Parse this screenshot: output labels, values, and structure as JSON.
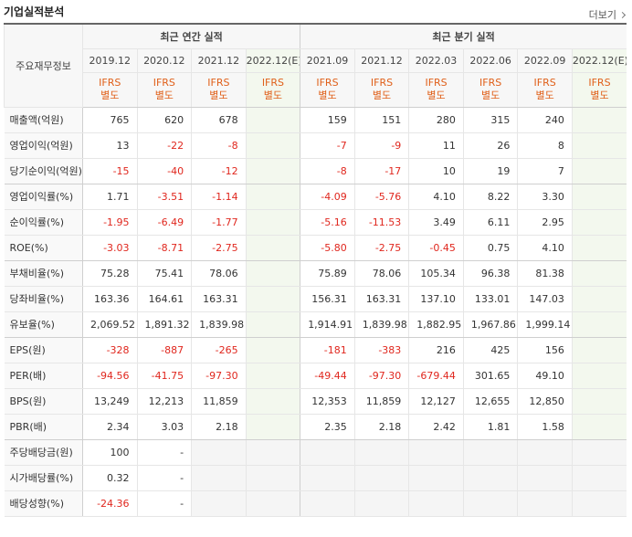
{
  "header": {
    "title": "기업실적분석",
    "more": "더보기"
  },
  "table": {
    "corner": "주요재무정보",
    "groups": [
      "최근 연간 실적",
      "최근 분기 실적"
    ],
    "periods": [
      "2019.12",
      "2020.12",
      "2021.12",
      "2022.12(E)",
      "2021.09",
      "2021.12",
      "2022.03",
      "2022.06",
      "2022.09",
      "2022.12(E)"
    ],
    "standards": [
      [
        "IFRS",
        "별도"
      ],
      [
        "IFRS",
        "별도"
      ],
      [
        "IFRS",
        "별도"
      ],
      [
        "IFRS",
        "별도"
      ],
      [
        "IFRS",
        "별도"
      ],
      [
        "IFRS",
        "별도"
      ],
      [
        "IFRS",
        "별도"
      ],
      [
        "IFRS",
        "별도"
      ],
      [
        "IFRS",
        "별도"
      ],
      [
        "IFRS",
        "별도"
      ]
    ],
    "rows": [
      {
        "label": "매출액(억원)",
        "values": [
          "765",
          "620",
          "678",
          null,
          "159",
          "151",
          "280",
          "315",
          "240",
          null
        ]
      },
      {
        "label": "영업이익(억원)",
        "values": [
          "13",
          "-22",
          "-8",
          null,
          "-7",
          "-9",
          "11",
          "26",
          "8",
          null
        ]
      },
      {
        "label": "당기순이익(억원)",
        "values": [
          "-15",
          "-40",
          "-12",
          null,
          "-8",
          "-17",
          "10",
          "19",
          "7",
          null
        ]
      },
      {
        "label": "영업이익률(%)",
        "values": [
          "1.71",
          "-3.51",
          "-1.14",
          null,
          "-4.09",
          "-5.76",
          "4.10",
          "8.22",
          "3.30",
          null
        ]
      },
      {
        "label": "순이익률(%)",
        "values": [
          "-1.95",
          "-6.49",
          "-1.77",
          null,
          "-5.16",
          "-11.53",
          "3.49",
          "6.11",
          "2.95",
          null
        ]
      },
      {
        "label": "ROE(%)",
        "values": [
          "-3.03",
          "-8.71",
          "-2.75",
          null,
          "-5.80",
          "-2.75",
          "-0.45",
          "0.75",
          "4.10",
          null
        ]
      },
      {
        "label": "부채비율(%)",
        "values": [
          "75.28",
          "75.41",
          "78.06",
          null,
          "75.89",
          "78.06",
          "105.34",
          "96.38",
          "81.38",
          null
        ]
      },
      {
        "label": "당좌비율(%)",
        "values": [
          "163.36",
          "164.61",
          "163.31",
          null,
          "156.31",
          "163.31",
          "137.10",
          "133.01",
          "147.03",
          null
        ]
      },
      {
        "label": "유보율(%)",
        "values": [
          "2,069.52",
          "1,891.32",
          "1,839.98",
          null,
          "1,914.91",
          "1,839.98",
          "1,882.95",
          "1,967.86",
          "1,999.14",
          null
        ]
      },
      {
        "label": "EPS(원)",
        "values": [
          "-328",
          "-887",
          "-265",
          null,
          "-181",
          "-383",
          "216",
          "425",
          "156",
          null
        ]
      },
      {
        "label": "PER(배)",
        "values": [
          "-94.56",
          "-41.75",
          "-97.30",
          null,
          "-49.44",
          "-97.30",
          "-679.44",
          "301.65",
          "49.10",
          null
        ]
      },
      {
        "label": "BPS(원)",
        "values": [
          "13,249",
          "12,213",
          "11,859",
          null,
          "12,353",
          "11,859",
          "12,127",
          "12,655",
          "12,850",
          null
        ]
      },
      {
        "label": "PBR(배)",
        "values": [
          "2.34",
          "3.03",
          "2.18",
          null,
          "2.35",
          "2.18",
          "2.42",
          "1.81",
          "1.58",
          null
        ]
      },
      {
        "label": "주당배당금(원)",
        "values": [
          "100",
          "-",
          null,
          null,
          null,
          null,
          null,
          null,
          null,
          null
        ]
      },
      {
        "label": "시가배당률(%)",
        "values": [
          "0.32",
          "-",
          null,
          null,
          null,
          null,
          null,
          null,
          null,
          null
        ]
      },
      {
        "label": "배당성향(%)",
        "values": [
          "-24.36",
          "-",
          null,
          null,
          null,
          null,
          null,
          null,
          null,
          null
        ]
      }
    ]
  }
}
